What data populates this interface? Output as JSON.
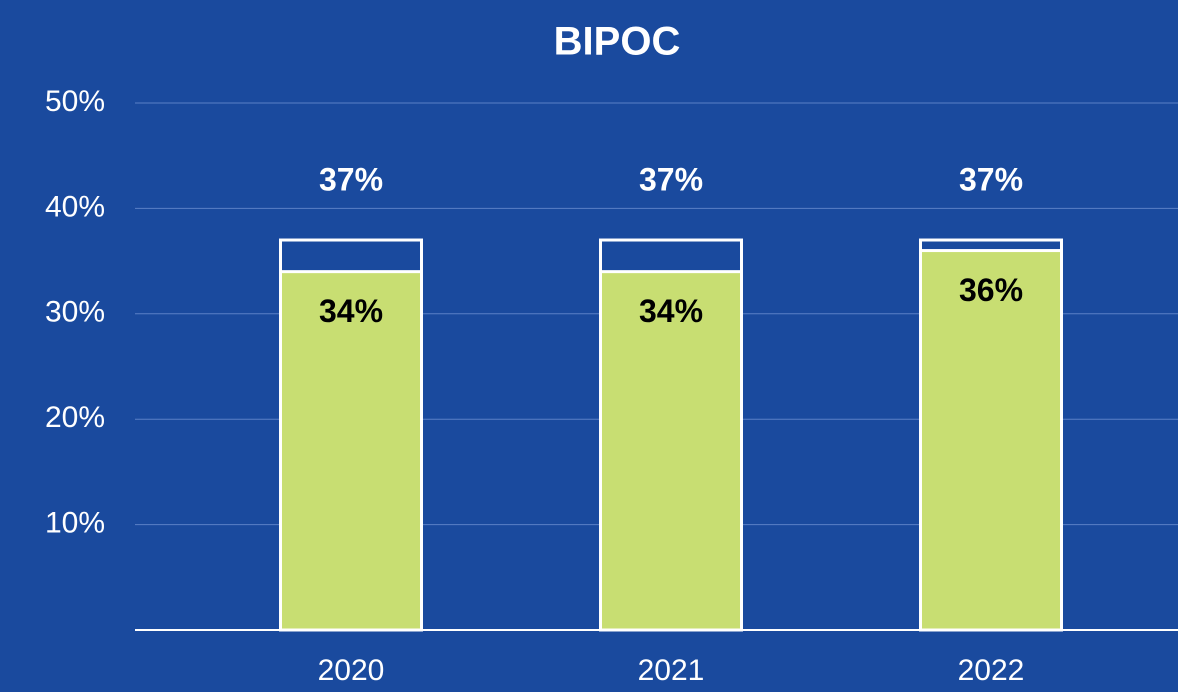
{
  "chart_data": {
    "type": "bar",
    "title": "BIPOC",
    "categories": [
      "2020",
      "2021",
      "2022"
    ],
    "series": [
      {
        "color": "#ffffff",
        "values": [
          37,
          37,
          37
        ],
        "value_labels": [
          "37%",
          "37%",
          "37%"
        ]
      },
      {
        "color": "#c8de72",
        "values": [
          34,
          34,
          36
        ],
        "value_labels": [
          "34%",
          "34%",
          "36%"
        ]
      }
    ],
    "ylim": [
      0,
      50
    ],
    "yticks": [
      {
        "value": 10,
        "label": "10%"
      },
      {
        "value": 20,
        "label": "20%"
      },
      {
        "value": 30,
        "label": "30%"
      },
      {
        "value": 40,
        "label": "40%"
      },
      {
        "value": 50,
        "label": "50%"
      }
    ],
    "grid": true
  }
}
